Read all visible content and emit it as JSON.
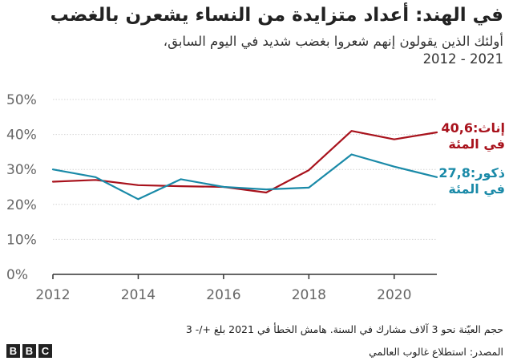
{
  "header": {
    "title": "في الهند: أعداد متزايدة من النساء يشعرن بالغضب",
    "subtitle": "أولئك الذين يقولون إنهم شعروا بغضب شديد في اليوم السابق،",
    "subtitle_years": "2012 - 2021"
  },
  "chart_data": {
    "type": "line",
    "title": "في الهند: أعداد متزايدة من النساء يشعرن بالغضب",
    "x": [
      2012,
      2013,
      2014,
      2015,
      2016,
      2017,
      2018,
      2019,
      2020,
      2021
    ],
    "x_ticks": [
      2012,
      2014,
      2016,
      2018,
      2020
    ],
    "x_tick_labels": [
      "2012",
      "2014",
      "2016",
      "2018",
      "2020"
    ],
    "y_ticks": [
      0,
      10,
      20,
      30,
      40,
      50
    ],
    "y_tick_labels": [
      "0%",
      "10%",
      "20%",
      "30%",
      "40%",
      "50%"
    ],
    "ylim": [
      0,
      50
    ],
    "xlim": [
      2012,
      2021
    ],
    "grid": true,
    "series": [
      {
        "name": "إناث",
        "color": "#a8121c",
        "values": [
          26.5,
          27.0,
          25.5,
          25.2,
          25.0,
          23.4,
          29.8,
          41.0,
          38.6,
          40.6
        ],
        "label_value": "إناث:40,6",
        "label_unit": "في المئة"
      },
      {
        "name": "ذكور",
        "color": "#1a8aa8",
        "values": [
          30.0,
          27.8,
          21.5,
          27.2,
          25.0,
          24.3,
          24.8,
          34.3,
          30.8,
          27.8
        ],
        "label_value": "ذكور:27,8",
        "label_unit": "في المئة"
      }
    ]
  },
  "footer": {
    "note": "حجم العيّنة نحو 3 آلاف مشارك في السنة. هامش الخطأ في 2021 بلغ +/- 3",
    "source": "المصدر: استطلاع غالوب العالمي",
    "logo_letters": [
      "B",
      "B",
      "C"
    ]
  }
}
